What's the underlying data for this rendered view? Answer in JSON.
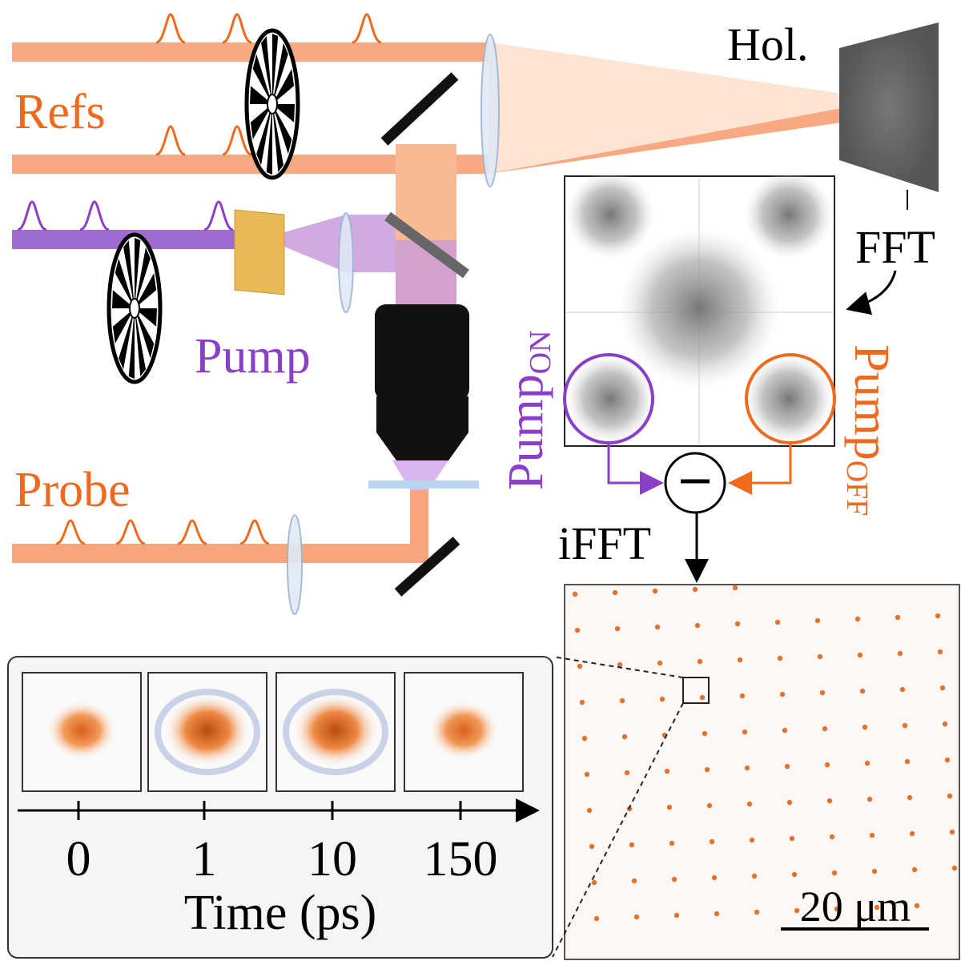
{
  "labels": {
    "hologram": "Hol.",
    "refs": "Refs",
    "fft": "FFT",
    "pump": "Pump",
    "pump_on": {
      "text": "Pump",
      "sub": "ON"
    },
    "pump_off": {
      "text": "Pump",
      "sub": "OFF"
    },
    "probe": "Probe",
    "ifft": "iFFT",
    "scale_bar": "20 μm"
  },
  "inset": {
    "time_ticks": [
      "0",
      "1",
      "10",
      "150"
    ],
    "axis_label": "Time (ps)"
  }
}
